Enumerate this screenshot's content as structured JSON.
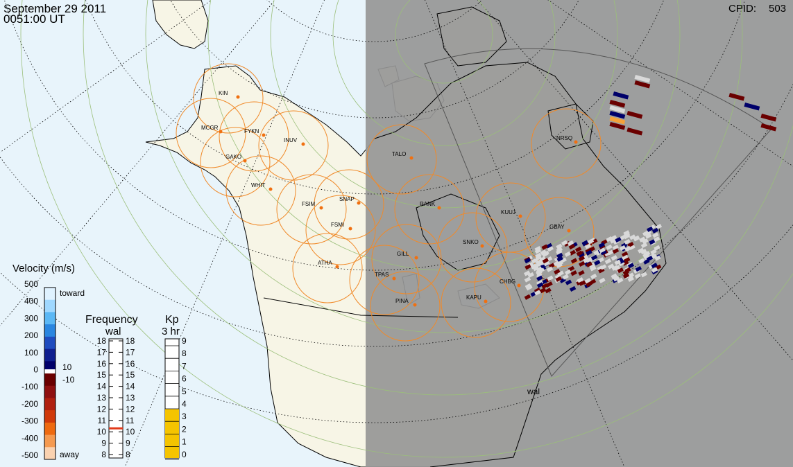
{
  "header": {
    "date": "September 29 2011",
    "time": "0051:00 UT",
    "cpid_label": "CPID:",
    "cpid_value": "503"
  },
  "velocity_scale": {
    "title": "Velocity (m/s)",
    "ticks": [
      "500",
      "400",
      "300",
      "200",
      "100",
      "0",
      "-100",
      "-200",
      "-300",
      "-400",
      "-500"
    ],
    "toward_label": "toward",
    "away_label": "away",
    "inner_top": "10",
    "inner_bottom": "-10",
    "colors_toward": [
      "#dff2ff",
      "#9fd8ff",
      "#5bb8f5",
      "#2a86e0",
      "#1f4cbf",
      "#0f1f8f",
      "#00006a"
    ],
    "colors_away": [
      "#6a0000",
      "#8f1010",
      "#b02010",
      "#d03a0a",
      "#ee6a10",
      "#f59a50",
      "#fad2b0"
    ]
  },
  "frequency_scale": {
    "title_1": "Frequency",
    "title_2": "wal",
    "ticks": [
      "18",
      "17",
      "16",
      "15",
      "14",
      "13",
      "12",
      "11",
      "10",
      "9",
      "8"
    ],
    "current_mhz": 10.7,
    "marker_color": "#e23a1a"
  },
  "kp_scale": {
    "title_1": "Kp",
    "title_2": "3 hr",
    "ticks": [
      "9",
      "8",
      "7",
      "6",
      "5",
      "4",
      "3",
      "2",
      "1",
      "0"
    ],
    "value": 3.7,
    "fill_color": "#f5c400"
  },
  "stations": [
    "KIN",
    "MCGR",
    "FYKN",
    "INUV",
    "GAKO",
    "WHIT",
    "FSIM",
    "SNAP",
    "FSMI",
    "ATHA",
    "TALO",
    "RANK",
    "KUUJ",
    "GBAY",
    "SNKO",
    "GILL",
    "TPAS",
    "KAPU",
    "CHBG",
    "PINA",
    "NRSQ"
  ],
  "radar_label": "wal",
  "colors": {
    "ocean": "#e8f4fb",
    "land": "#f7f5e6",
    "night": "#969696",
    "fov_ring": "#f08a2a",
    "station_dot": "#f07010",
    "grid": "#9bbf7a"
  }
}
